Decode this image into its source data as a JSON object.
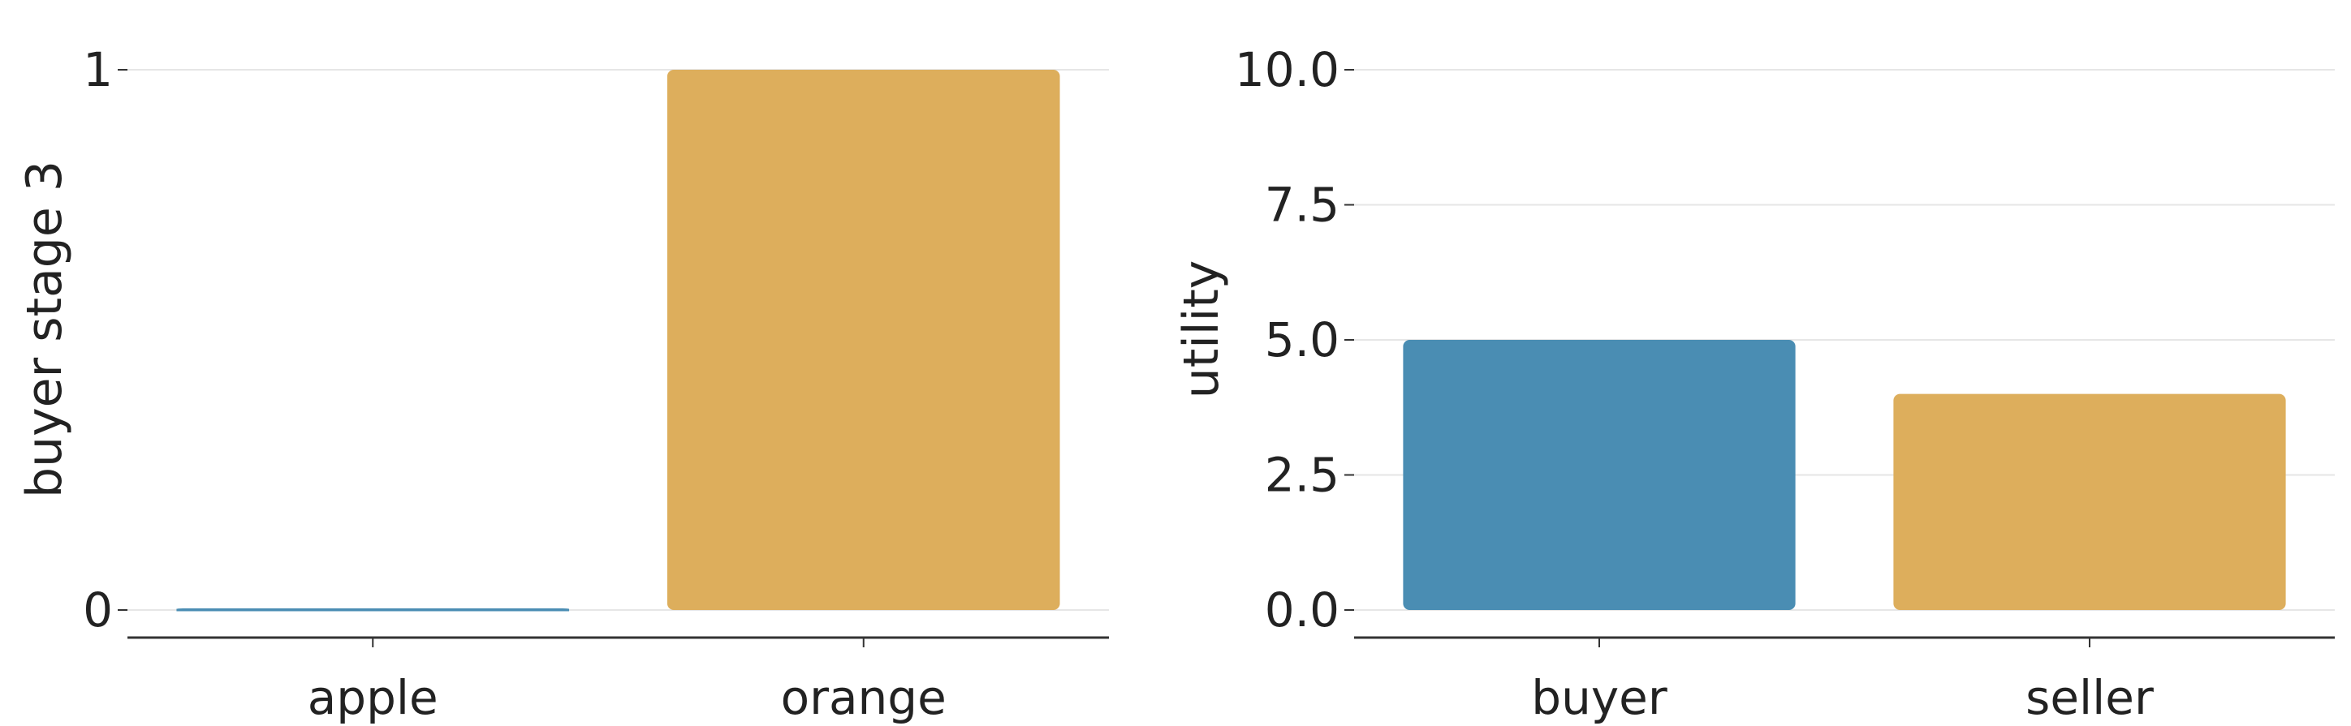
{
  "chart_data": [
    {
      "type": "bar",
      "categories": [
        "apple",
        "orange"
      ],
      "values": [
        0,
        1
      ],
      "bar_colors": [
        "#4a8db3",
        "#ddae5c"
      ],
      "xlabel": "",
      "ylabel": "buyer stage 3",
      "ylim": [
        0,
        1
      ],
      "yticks": [
        "0",
        "1"
      ],
      "grid": true
    },
    {
      "type": "bar",
      "categories": [
        "buyer",
        "seller"
      ],
      "values": [
        5.0,
        4.0
      ],
      "bar_colors": [
        "#4a8db3",
        "#ddae5c"
      ],
      "xlabel": "",
      "ylabel": "utility",
      "ylim": [
        0,
        10
      ],
      "yticks": [
        "0.0",
        "2.5",
        "5.0",
        "7.5",
        "10.0"
      ],
      "grid": true
    }
  ]
}
